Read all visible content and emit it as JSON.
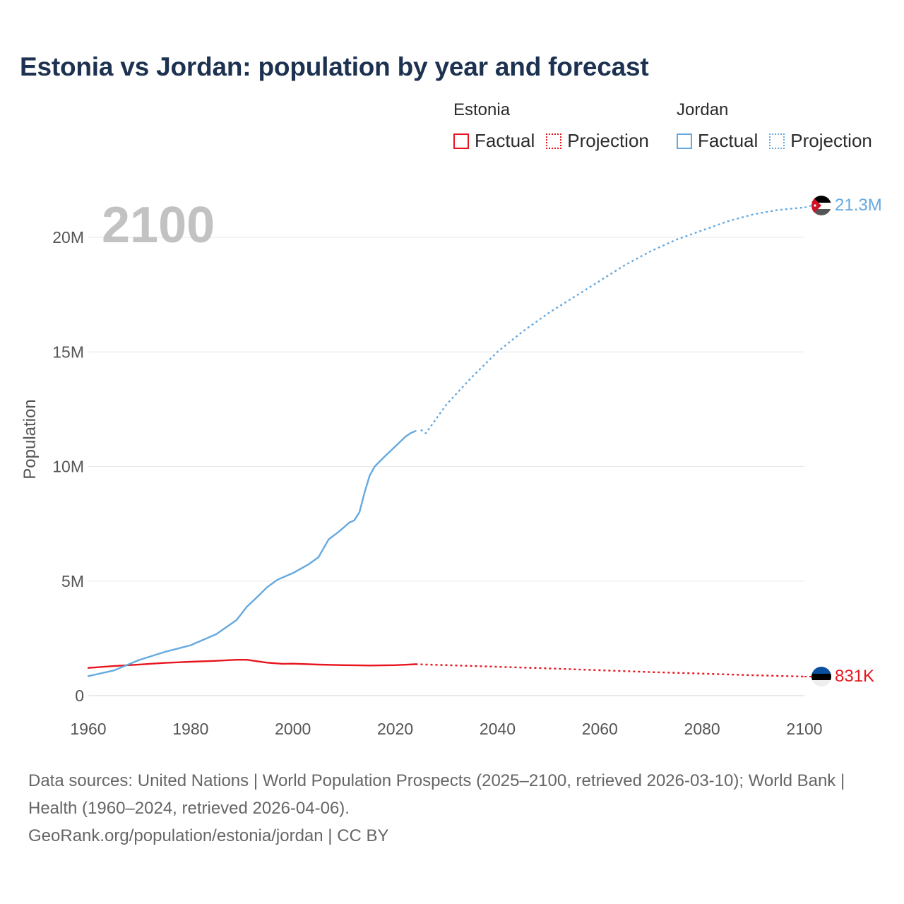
{
  "title": "Estonia vs Jordan: population by year and forecast",
  "legend": {
    "groups": [
      {
        "name": "Estonia",
        "color": "#e8141e",
        "factual_label": "Factual",
        "projection_label": "Projection"
      },
      {
        "name": "Jordan",
        "color": "#65a9e0",
        "factual_label": "Factual",
        "projection_label": "Projection"
      }
    ]
  },
  "year_watermark": "2100",
  "end_labels": {
    "jordan": "21.3M",
    "estonia": "831K"
  },
  "footer": {
    "sources": "Data sources: United Nations | World Population Prospects (2025–2100, retrieved 2026-03-10); World Bank | Health (1960–2024, retrieved 2026-04-06).",
    "credit": "GeoRank.org/population/estonia/jordan | CC BY"
  },
  "chart_data": {
    "type": "line",
    "title": "Estonia vs Jordan: population by year and forecast",
    "xlabel": "",
    "ylabel": "Population",
    "xlim": [
      1960,
      2100
    ],
    "ylim": [
      0,
      22000000
    ],
    "x_ticks": [
      1960,
      1980,
      2000,
      2020,
      2040,
      2060,
      2080,
      2100
    ],
    "x_tick_labels": [
      "1960",
      "1980",
      "2000",
      "2020",
      "2040",
      "2060",
      "2080",
      "2100"
    ],
    "y_ticks": [
      0,
      5000000,
      10000000,
      15000000,
      20000000
    ],
    "y_tick_labels": [
      "0",
      "5M",
      "10M",
      "15M",
      "20M"
    ],
    "grid": true,
    "series": [
      {
        "name": "Estonia",
        "kind": "Factual",
        "color": "#e8141e",
        "x": [
          1960,
          1965,
          1970,
          1975,
          1980,
          1985,
          1989,
          1991,
          1993,
          1995,
          1998,
          2000,
          2005,
          2010,
          2015,
          2020,
          2022,
          2024
        ],
        "y": [
          1210000,
          1290000,
          1360000,
          1430000,
          1480000,
          1520000,
          1565000,
          1567000,
          1500000,
          1440000,
          1390000,
          1396000,
          1355000,
          1332000,
          1315000,
          1330000,
          1350000,
          1370000
        ]
      },
      {
        "name": "Estonia",
        "kind": "Projection",
        "color": "#e8141e",
        "x": [
          2024,
          2030,
          2040,
          2050,
          2060,
          2070,
          2080,
          2090,
          2100
        ],
        "y": [
          1370000,
          1330000,
          1260000,
          1190000,
          1110000,
          1030000,
          960000,
          890000,
          831000
        ]
      },
      {
        "name": "Jordan",
        "kind": "Factual",
        "color": "#65a9e0",
        "x": [
          1960,
          1965,
          1970,
          1975,
          1980,
          1985,
          1989,
          1991,
          1993,
          1995,
          1997,
          2000,
          2003,
          2005,
          2007,
          2009,
          2010,
          2011,
          2012,
          2013,
          2014,
          2015,
          2016,
          2018,
          2020,
          2022,
          2023,
          2024
        ],
        "y": [
          850000,
          1100000,
          1560000,
          1910000,
          2200000,
          2680000,
          3300000,
          3880000,
          4300000,
          4740000,
          5060000,
          5350000,
          5720000,
          6040000,
          6820000,
          7160000,
          7350000,
          7550000,
          7650000,
          8000000,
          8850000,
          9600000,
          10000000,
          10450000,
          10870000,
          11300000,
          11450000,
          11550000
        ]
      },
      {
        "name": "Jordan",
        "kind": "Projection",
        "color": "#65a9e0",
        "x": [
          2025,
          2026,
          2030,
          2035,
          2040,
          2045,
          2050,
          2055,
          2060,
          2065,
          2070,
          2075,
          2080,
          2085,
          2090,
          2095,
          2100
        ],
        "y": [
          11600000,
          11450000,
          12700000,
          13900000,
          15000000,
          15900000,
          16700000,
          17400000,
          18100000,
          18800000,
          19400000,
          19900000,
          20300000,
          20700000,
          21000000,
          21200000,
          21300000
        ]
      }
    ]
  }
}
